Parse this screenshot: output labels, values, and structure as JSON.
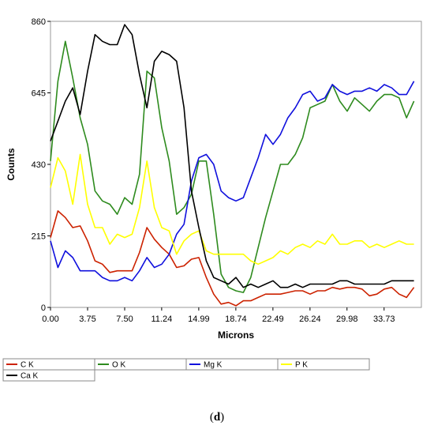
{
  "chart_data": {
    "type": "line",
    "xlabel": "Microns",
    "ylabel": "Counts",
    "xlim": [
      0,
      37.5
    ],
    "ylim": [
      0,
      860
    ],
    "x_ticks": [
      "0.00",
      "3.75",
      "7.50",
      "11.24",
      "14.99",
      "18.74",
      "22.49",
      "26.24",
      "29.98",
      "33.73"
    ],
    "x_tick_values": [
      0,
      3.75,
      7.5,
      11.24,
      14.99,
      18.74,
      22.49,
      26.24,
      29.98,
      33.73
    ],
    "y_ticks": [
      "0",
      "215",
      "430",
      "645",
      "860"
    ],
    "y_tick_values": [
      0,
      215,
      430,
      645,
      860
    ],
    "grid": false,
    "legend_position": "bottom",
    "x": [
      0,
      0.75,
      1.5,
      2.25,
      3,
      3.75,
      4.5,
      5.25,
      6,
      6.75,
      7.5,
      8.25,
      9,
      9.75,
      10.5,
      11.25,
      12,
      12.75,
      13.5,
      14.25,
      15,
      15.75,
      16.5,
      17.25,
      18,
      18.75,
      19.5,
      20.25,
      21,
      21.75,
      22.5,
      23.25,
      24,
      24.75,
      25.5,
      26.25,
      27,
      27.75,
      28.5,
      29.25,
      30,
      30.75,
      31.5,
      32.25,
      33,
      33.75,
      34.5,
      35.25,
      36,
      36.75
    ],
    "series": [
      {
        "name": "C K",
        "color": "#cc2200",
        "values": [
          210,
          290,
          270,
          240,
          245,
          200,
          140,
          130,
          105,
          110,
          110,
          110,
          165,
          240,
          205,
          180,
          160,
          120,
          125,
          145,
          150,
          90,
          40,
          10,
          15,
          5,
          20,
          20,
          30,
          40,
          40,
          40,
          45,
          50,
          50,
          40,
          50,
          50,
          60,
          55,
          60,
          60,
          55,
          35,
          40,
          55,
          60,
          40,
          30,
          60
        ]
      },
      {
        "name": "O K",
        "color": "#2e8b1e",
        "values": [
          440,
          680,
          800,
          690,
          570,
          490,
          350,
          320,
          310,
          280,
          330,
          310,
          400,
          710,
          690,
          540,
          440,
          280,
          300,
          340,
          440,
          440,
          280,
          100,
          60,
          50,
          45,
          90,
          180,
          270,
          350,
          430,
          430,
          460,
          510,
          600,
          610,
          620,
          670,
          620,
          590,
          630,
          610,
          590,
          620,
          640,
          640,
          630,
          570,
          620
        ]
      },
      {
        "name": "Mg K",
        "color": "#1010dd",
        "values": [
          200,
          120,
          170,
          150,
          110,
          110,
          110,
          90,
          80,
          80,
          90,
          80,
          110,
          150,
          120,
          130,
          160,
          220,
          250,
          380,
          450,
          460,
          430,
          350,
          330,
          320,
          330,
          390,
          450,
          520,
          490,
          520,
          570,
          600,
          640,
          650,
          620,
          630,
          670,
          650,
          640,
          650,
          650,
          660,
          650,
          670,
          660,
          640,
          640,
          680
        ]
      },
      {
        "name": "P K",
        "color": "#ffff00",
        "values": [
          360,
          450,
          410,
          310,
          460,
          310,
          240,
          240,
          190,
          220,
          210,
          220,
          300,
          440,
          300,
          240,
          230,
          160,
          200,
          220,
          230,
          170,
          160,
          160,
          160,
          160,
          160,
          140,
          130,
          140,
          150,
          170,
          160,
          180,
          190,
          180,
          200,
          190,
          220,
          190,
          190,
          200,
          200,
          180,
          190,
          180,
          190,
          200,
          190,
          190
        ]
      },
      {
        "name": "Ca K",
        "color": "#000000",
        "values": [
          500,
          560,
          620,
          660,
          580,
          710,
          820,
          800,
          790,
          790,
          850,
          820,
          700,
          600,
          740,
          770,
          760,
          740,
          600,
          350,
          240,
          140,
          90,
          80,
          70,
          90,
          60,
          70,
          60,
          70,
          80,
          60,
          60,
          70,
          60,
          70,
          70,
          70,
          70,
          80,
          80,
          70,
          70,
          70,
          70,
          70,
          80,
          80,
          80,
          80
        ]
      }
    ]
  },
  "panel_label": "d"
}
